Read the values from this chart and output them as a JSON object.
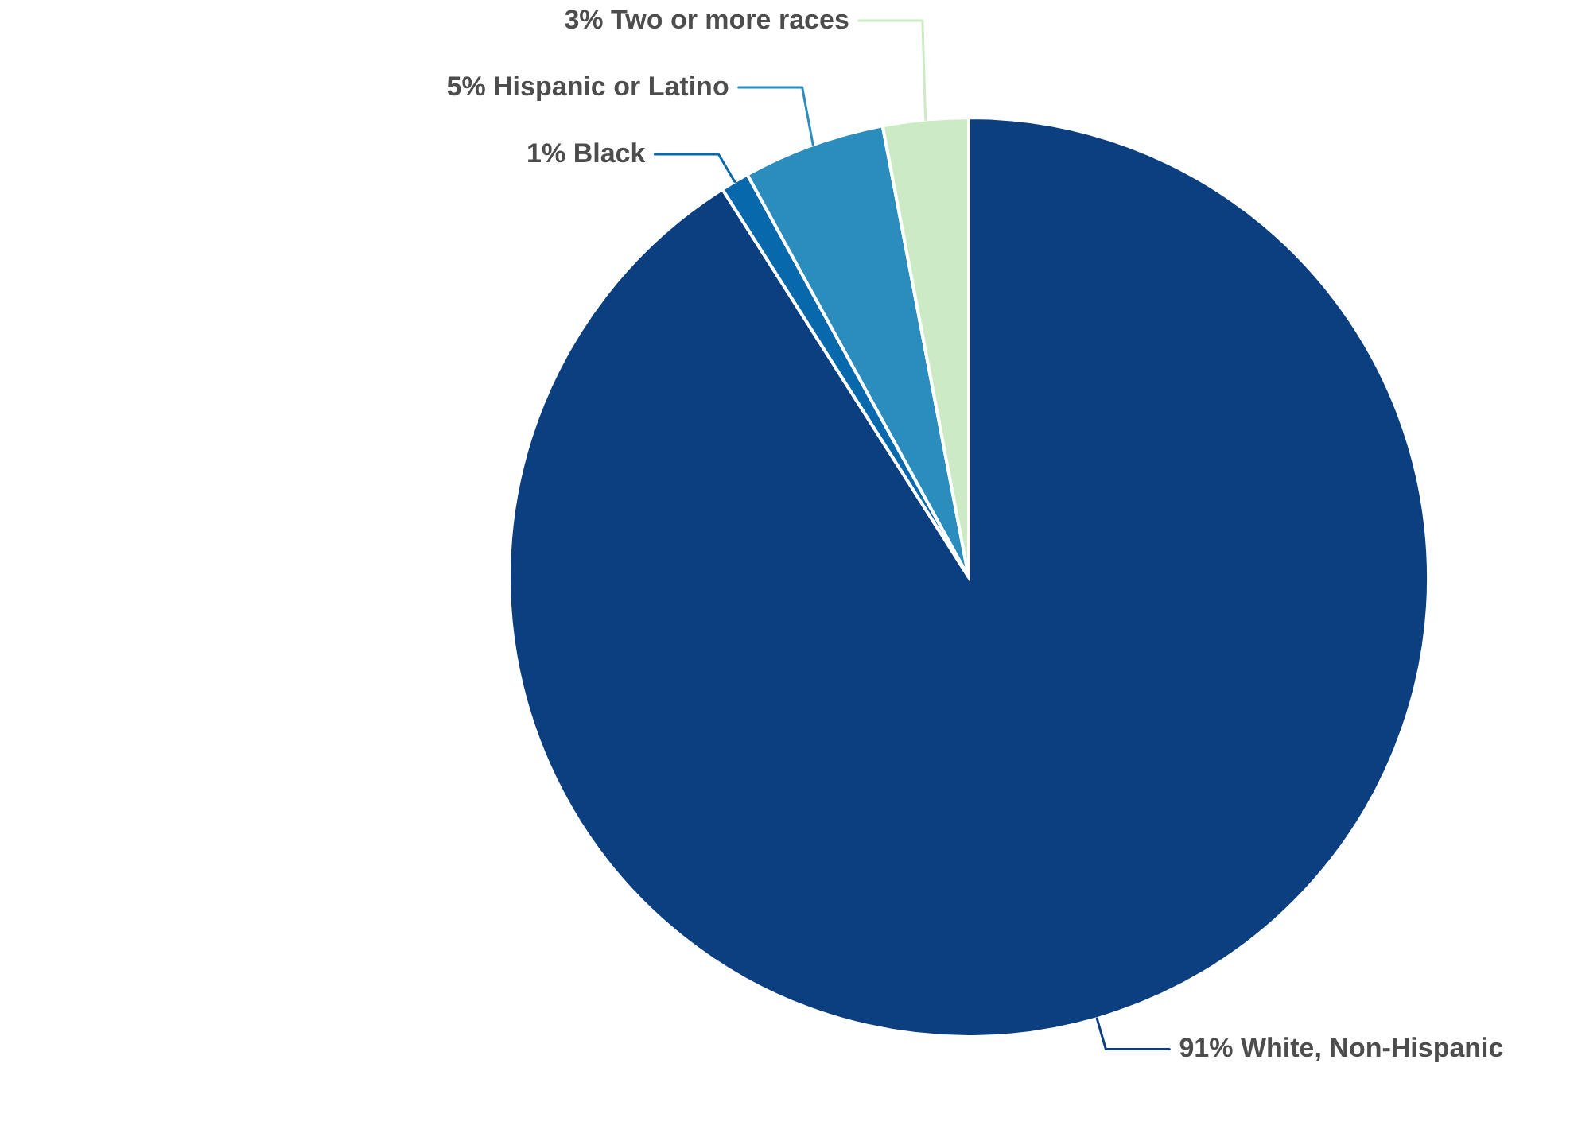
{
  "chart_data": {
    "type": "pie",
    "categories": [
      "White, Non-Hispanic",
      "Black",
      "Hispanic or Latino",
      "Two or more races"
    ],
    "values": [
      91,
      1,
      5,
      3
    ],
    "colors": [
      "#0b3f7f",
      "#0868ac",
      "#2b8cbe",
      "#ccebc5"
    ],
    "value_labels": [
      "91%",
      "1%",
      "5%",
      "3%"
    ]
  }
}
